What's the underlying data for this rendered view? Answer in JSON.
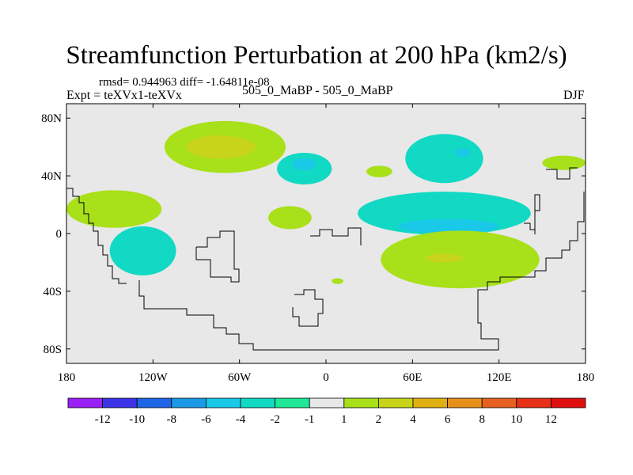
{
  "header": {
    "title": "Streamfunction Perturbation at 200 hPa (km2/s)",
    "stats": "rmsd= 0.944963 diff= -1.64811e-08",
    "expt": "Expt = teXVx1-teXVx",
    "case": "505_0_MaBP - 505_0_MaBP",
    "season": "DJF"
  },
  "chart_data": {
    "type": "heatmap",
    "title": "Streamfunction Perturbation at 200 hPa (km2/s)",
    "xlabel": "",
    "ylabel": "",
    "xlim": [
      -180,
      180
    ],
    "ylim": [
      -90,
      90
    ],
    "xticks": [
      {
        "value": -180,
        "label": "180"
      },
      {
        "value": -120,
        "label": "120W"
      },
      {
        "value": -60,
        "label": "60W"
      },
      {
        "value": 0,
        "label": "0"
      },
      {
        "value": 60,
        "label": "60E"
      },
      {
        "value": 120,
        "label": "120E"
      },
      {
        "value": 180,
        "label": "180"
      }
    ],
    "yticks": [
      {
        "value": 80,
        "label": "80N"
      },
      {
        "value": 40,
        "label": "40N"
      },
      {
        "value": 0,
        "label": "0"
      },
      {
        "value": -40,
        "label": "40S"
      },
      {
        "value": -80,
        "label": "80S"
      }
    ],
    "background_color": "#e8e8e8",
    "colorbar": {
      "labels": [
        "-12",
        "-10",
        "-8",
        "-6",
        "-4",
        "-2",
        "-1",
        "1",
        "2",
        "4",
        "6",
        "8",
        "10",
        "12"
      ],
      "colors": [
        "#9a1ff5",
        "#3c33e6",
        "#1f66e6",
        "#1a99e6",
        "#1ac8e8",
        "#12d9c4",
        "#1ee898",
        "#e8e8e8",
        "#a8e01a",
        "#c8d41a",
        "#e0b012",
        "#e6901a",
        "#e66020",
        "#e63018",
        "#e01010"
      ]
    },
    "anomaly_regions": [
      {
        "lon": -70,
        "lat": 60,
        "rx": 42,
        "ry": 18,
        "level": "1 to 2"
      },
      {
        "lon": -73,
        "lat": 60,
        "rx": 24,
        "ry": 8,
        "level": "2 to 4"
      },
      {
        "lon": -147,
        "lat": 17,
        "rx": 33,
        "ry": 13,
        "level": "1 to 2"
      },
      {
        "lon": -127,
        "lat": -12,
        "rx": 23,
        "ry": 17,
        "level": "-2 to -1"
      },
      {
        "lon": -15,
        "lat": 45,
        "rx": 19,
        "ry": 11,
        "level": "-2 to -1"
      },
      {
        "lon": -15,
        "lat": 48,
        "rx": 8,
        "ry": 4,
        "level": "-4 to -2"
      },
      {
        "lon": 37,
        "lat": 43,
        "rx": 9,
        "ry": 4,
        "level": "1 to 2"
      },
      {
        "lon": -25,
        "lat": 11,
        "rx": 15,
        "ry": 8,
        "level": "1 to 2"
      },
      {
        "lon": 82,
        "lat": 52,
        "rx": 27,
        "ry": 17,
        "level": "-2 to -1"
      },
      {
        "lon": 95,
        "lat": 56,
        "rx": 5,
        "ry": 3,
        "level": "-4 to -2"
      },
      {
        "lon": 165,
        "lat": 49,
        "rx": 15,
        "ry": 5,
        "level": "1 to 2"
      },
      {
        "lon": 82,
        "lat": 14,
        "rx": 60,
        "ry": 15,
        "level": "-2 to -1"
      },
      {
        "lon": 85,
        "lat": 5,
        "rx": 35,
        "ry": 5,
        "level": "-4 to -2"
      },
      {
        "lon": 93,
        "lat": -18,
        "rx": 55,
        "ry": 20,
        "level": "1 to 2"
      },
      {
        "lon": 82,
        "lat": -17,
        "rx": 13,
        "ry": 3,
        "level": "2 to 4"
      },
      {
        "lon": 8,
        "lat": -33,
        "rx": 4,
        "ry": 2,
        "level": "1 to 2"
      }
    ]
  }
}
